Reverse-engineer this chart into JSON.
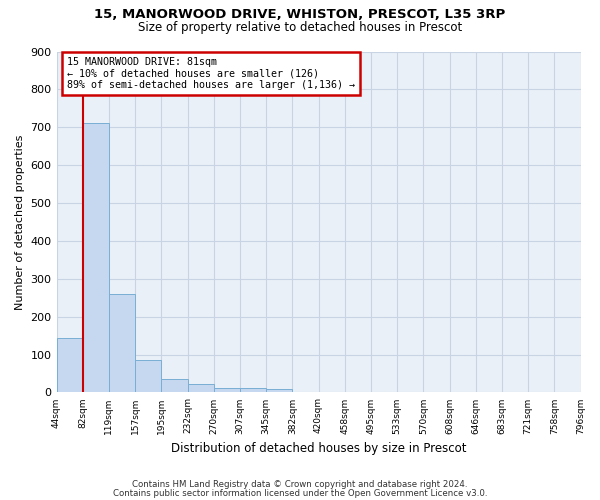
{
  "title": "15, MANORWOOD DRIVE, WHISTON, PRESCOT, L35 3RP",
  "subtitle": "Size of property relative to detached houses in Prescot",
  "xlabel": "Distribution of detached houses by size in Prescot",
  "ylabel": "Number of detached properties",
  "bar_values": [
    145,
    710,
    260,
    85,
    35,
    22,
    13,
    13,
    10,
    0,
    0,
    0,
    0,
    0,
    0,
    0,
    0,
    0,
    0,
    0
  ],
  "bar_color": "#c5d8f0",
  "bar_edge_color": "#7aaed4",
  "x_tick_labels": [
    "44sqm",
    "82sqm",
    "119sqm",
    "157sqm",
    "195sqm",
    "232sqm",
    "270sqm",
    "307sqm",
    "345sqm",
    "382sqm",
    "420sqm",
    "458sqm",
    "495sqm",
    "533sqm",
    "570sqm",
    "608sqm",
    "646sqm",
    "683sqm",
    "721sqm",
    "758sqm",
    "796sqm"
  ],
  "ylim": [
    0,
    900
  ],
  "yticks": [
    0,
    100,
    200,
    300,
    400,
    500,
    600,
    700,
    800,
    900
  ],
  "red_line_x": 1.0,
  "annotation_line1": "15 MANORWOOD DRIVE: 81sqm",
  "annotation_line2": "← 10% of detached houses are smaller (126)",
  "annotation_line3": "89% of semi-detached houses are larger (1,136) →",
  "annotation_box_color": "#cc0000",
  "footer_line1": "Contains HM Land Registry data © Crown copyright and database right 2024.",
  "footer_line2": "Contains public sector information licensed under the Open Government Licence v3.0.",
  "background_color": "#eaf0f8",
  "grid_color": "#c8d4e4"
}
